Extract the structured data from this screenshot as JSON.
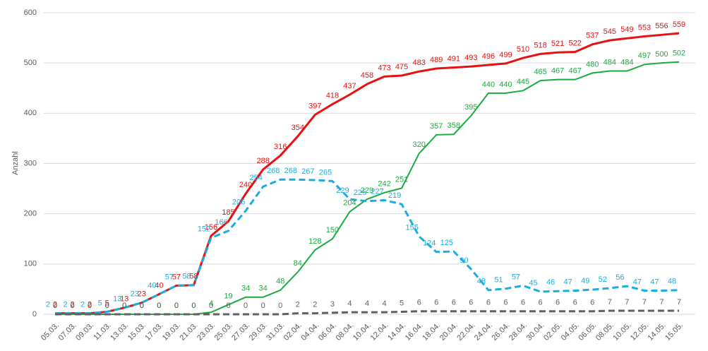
{
  "chart_data": {
    "type": "line",
    "y_label": "Anzahl",
    "categories": [
      "05.03.",
      "07.03.",
      "09.03.",
      "11.03.",
      "13.03.",
      "15.03.",
      "17.03.",
      "19.03.",
      "21.03.",
      "23.03.",
      "25.03.",
      "27.03.",
      "29.03.",
      "31.03.",
      "02.04.",
      "04.04.",
      "06.04.",
      "08.04.",
      "10.04.",
      "12.04.",
      "14.04.",
      "16.04.",
      "18.04.",
      "20.04.",
      "22.04.",
      "24.04.",
      "26.04.",
      "28.04.",
      "30.04.",
      "02.05.",
      "04.05.",
      "06.05.",
      "08.05.",
      "10.05.",
      "12.05.",
      "14.05.",
      "15.05."
    ],
    "series": [
      {
        "color": "#e81010",
        "dashed": false,
        "values": [
          2,
          2,
          2,
          5,
          13,
          23,
          40,
          57,
          58,
          156,
          185,
          240,
          288,
          316,
          354,
          397,
          418,
          437,
          458,
          473,
          475,
          483,
          489,
          491,
          493,
          496,
          499,
          510,
          518,
          521,
          522,
          537,
          545,
          549,
          553,
          556,
          559
        ]
      },
      {
        "color": "#1aab40",
        "dashed": false,
        "values": [
          0,
          0,
          0,
          0,
          0,
          0,
          0,
          0,
          0,
          4,
          19,
          34,
          34,
          48,
          84,
          128,
          150,
          204,
          229,
          242,
          251,
          320,
          357,
          358,
          395,
          440,
          440,
          445,
          465,
          467,
          467,
          480,
          484,
          484,
          497,
          500,
          502
        ]
      },
      {
        "color": "#1aaee0",
        "dashed": true,
        "values": [
          2,
          2,
          2,
          5,
          13,
          23,
          40,
          57,
          58,
          152,
          166,
          206,
          254,
          268,
          268,
          267,
          265,
          229,
          225,
          227,
          219,
          155,
          124,
          125,
          90,
          48,
          51,
          57,
          45,
          46,
          47,
          49,
          52,
          56,
          47,
          47,
          48
        ]
      },
      {
        "color": "#606060",
        "dashed": true,
        "values": [
          0,
          0,
          0,
          0,
          0,
          0,
          0,
          0,
          0,
          0,
          0,
          0,
          0,
          0,
          2,
          2,
          3,
          4,
          4,
          4,
          5,
          6,
          6,
          6,
          6,
          6,
          6,
          6,
          6,
          6,
          6,
          6,
          7,
          7,
          7,
          7,
          7
        ]
      }
    ],
    "ylim": [
      0,
      600
    ],
    "yticks": [
      0,
      100,
      200,
      300,
      400,
      500,
      600
    ],
    "grid": true
  }
}
